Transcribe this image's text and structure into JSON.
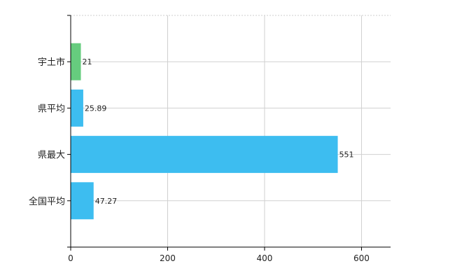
{
  "chart_data": {
    "type": "bar",
    "orientation": "horizontal",
    "categories": [
      "宇土市",
      "県平均",
      "県最大",
      "全国平均"
    ],
    "values": [
      21,
      25.89,
      551,
      47.27
    ],
    "data_labels": [
      "21",
      "25.89",
      "551",
      "47.27"
    ],
    "bar_colors": [
      "#66cc7e",
      "#3dbdf0",
      "#3dbdf0",
      "#3dbdf0"
    ],
    "xlim": [
      0,
      660
    ],
    "x_ticks": [
      0,
      200,
      400,
      600
    ],
    "x_tick_labels": [
      "0",
      "200",
      "400",
      "600"
    ],
    "grid": true,
    "legend": "none"
  }
}
